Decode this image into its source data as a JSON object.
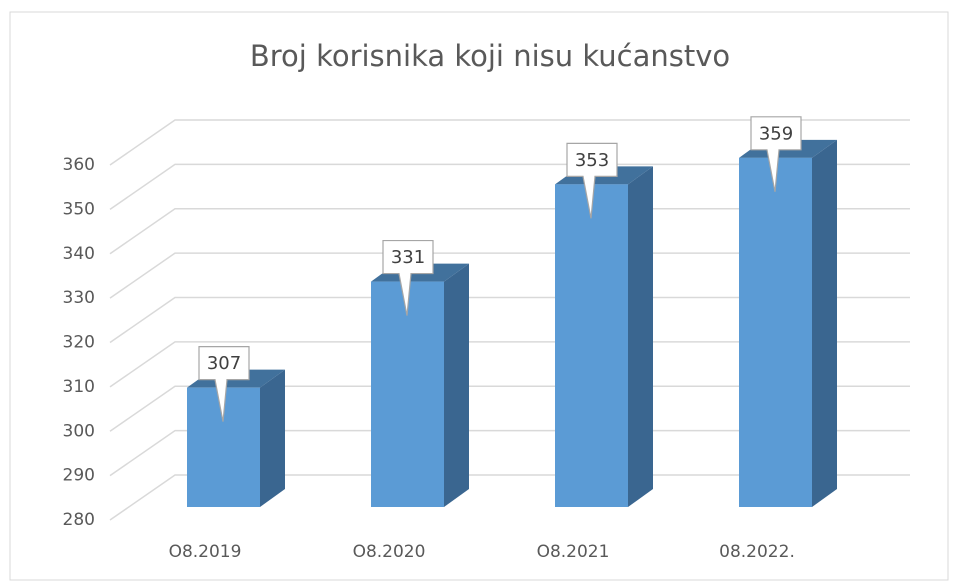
{
  "chart_data": {
    "type": "bar3d",
    "title": "Broj korisnika koji nisu kućanstvo",
    "categories": [
      "O8.2019",
      "O8.2020",
      "O8.2021",
      "08.2022."
    ],
    "values": [
      307,
      331,
      353,
      359
    ],
    "color": "#5b9bd5",
    "ylim": [
      280,
      360
    ],
    "yticks": [
      280,
      290,
      300,
      310,
      320,
      330,
      340,
      350,
      360
    ],
    "grid": true
  }
}
